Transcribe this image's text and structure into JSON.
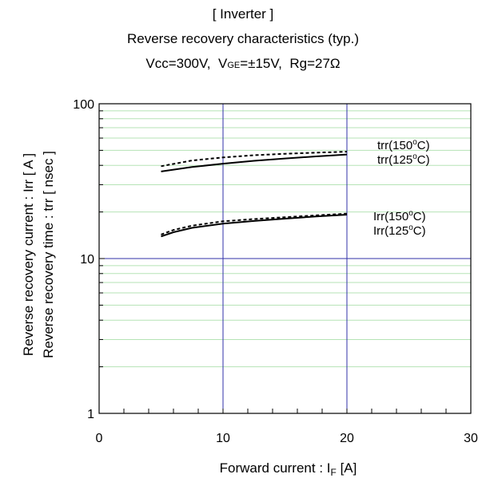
{
  "chart_data": {
    "type": "line",
    "title": "[ Inverter ]",
    "subtitle": "Reverse recovery characteristics  (typ.)",
    "conditions": {
      "vcc": "Vcc=300V,",
      "vge_main": "V",
      "vge_sub": "GE",
      "vge_value": "=±15V,",
      "rg": "Rg=27Ω"
    },
    "xlabel_main": "Forward current : I",
    "xlabel_sub": "F",
    "xlabel_unit": " [A]",
    "ylabel_line1": "Reverse recovery current  :  Irr  [ A ]",
    "ylabel_line2": "Reverse recovery time  :  trr  [ nsec ]",
    "xlim": [
      0,
      30
    ],
    "ylim": [
      1,
      100
    ],
    "yscale": "log",
    "x_ticks": [
      "0",
      "10",
      "20",
      "30"
    ],
    "y_ticks": [
      "1",
      "10",
      "100"
    ],
    "grid": true,
    "series": [
      {
        "name": "trr(150°C)",
        "style": "dashed",
        "x": [
          5,
          7.5,
          10,
          12.5,
          15,
          17.5,
          20
        ],
        "y": [
          39.5,
          43.0,
          45.0,
          46.5,
          47.5,
          48.3,
          49.0
        ]
      },
      {
        "name": "trr(125°C)",
        "style": "solid",
        "x": [
          5,
          7.5,
          10,
          12.5,
          15,
          17.5,
          20
        ],
        "y": [
          36.5,
          39.0,
          41.0,
          42.8,
          44.3,
          45.7,
          47.0
        ]
      },
      {
        "name": "Irr(150°C)",
        "style": "dashed",
        "x": [
          5,
          6,
          7.5,
          10,
          12.5,
          15,
          17.5,
          20
        ],
        "y": [
          14.3,
          15.3,
          16.3,
          17.4,
          18.0,
          18.5,
          19.0,
          19.5
        ]
      },
      {
        "name": "Irr(125°C)",
        "style": "solid",
        "x": [
          5,
          6,
          7.5,
          10,
          12.5,
          15,
          17.5,
          20
        ],
        "y": [
          13.9,
          14.8,
          15.8,
          16.8,
          17.5,
          18.1,
          18.7,
          19.2
        ]
      }
    ],
    "series_labels": [
      {
        "main": "trr(150",
        "sup": "o",
        "tail": "C)"
      },
      {
        "main": "trr(125",
        "sup": "o",
        "tail": "C)"
      },
      {
        "main": "Irr(150",
        "sup": "o",
        "tail": "C)"
      },
      {
        "main": "Irr(125",
        "sup": "o",
        "tail": "C)"
      }
    ],
    "colors": {
      "gridMajor": "#3232a8",
      "gridMinor": "#b5e3b5",
      "line": "#000000"
    }
  }
}
